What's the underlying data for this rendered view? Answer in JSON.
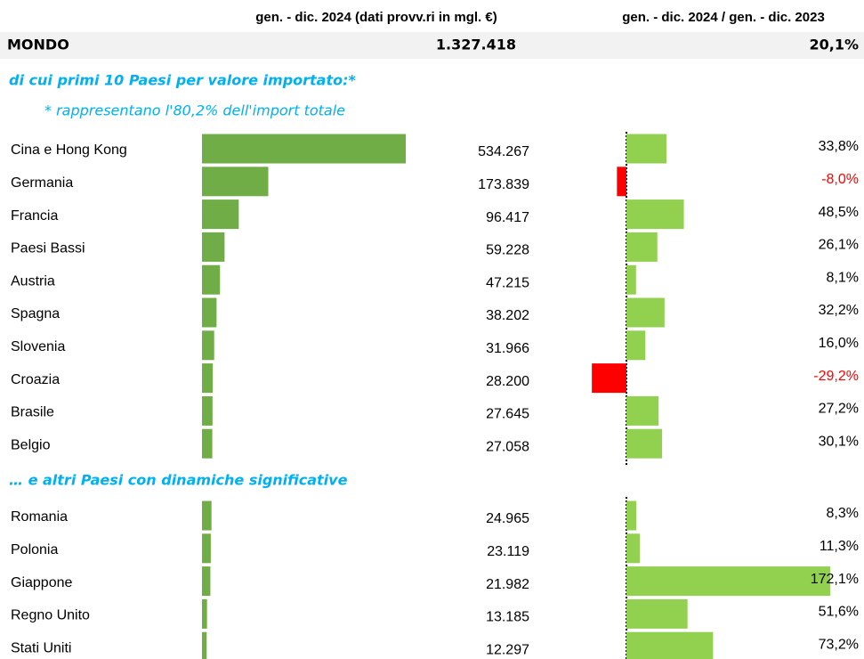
{
  "header": {
    "col1": "gen. - dic. 2024 (dati provv.ri in mgl. €)",
    "col2": "gen. - dic. 2024 / gen. - dic. 2023"
  },
  "world": {
    "name": "MONDO",
    "value": 1327418,
    "value_label": "1.327.418",
    "change": 20.1,
    "change_label": "20,1%"
  },
  "top_title": "di cui primi 10 Paesi per valore importato:*",
  "top_note": "* rappresentano l'80,2% dell'import totale",
  "top": [
    {
      "name": "Cina e Hong Kong",
      "value": 534267,
      "value_label": "534.267",
      "change": 33.8,
      "change_label": "33,8%"
    },
    {
      "name": "Germania",
      "value": 173839,
      "value_label": "173.839",
      "change": -8.0,
      "change_label": "-8,0%"
    },
    {
      "name": "Francia",
      "value": 96417,
      "value_label": "96.417",
      "change": 48.5,
      "change_label": "48,5%"
    },
    {
      "name": "Paesi Bassi",
      "value": 59228,
      "value_label": "59.228",
      "change": 26.1,
      "change_label": "26,1%"
    },
    {
      "name": "Austria",
      "value": 47215,
      "value_label": "47.215",
      "change": 8.1,
      "change_label": "8,1%"
    },
    {
      "name": "Spagna",
      "value": 38202,
      "value_label": "38.202",
      "change": 32.2,
      "change_label": "32,2%"
    },
    {
      "name": "Slovenia",
      "value": 31966,
      "value_label": "31.966",
      "change": 16.0,
      "change_label": "16,0%"
    },
    {
      "name": "Croazia",
      "value": 28200,
      "value_label": "28.200",
      "change": -29.2,
      "change_label": "-29,2%"
    },
    {
      "name": "Brasile",
      "value": 27645,
      "value_label": "27.645",
      "change": 27.2,
      "change_label": "27,2%"
    },
    {
      "name": "Belgio",
      "value": 27058,
      "value_label": "27.058",
      "change": 30.1,
      "change_label": "30,1%"
    }
  ],
  "others_title": "… e altri Paesi con dinamiche significative",
  "others": [
    {
      "name": "Romania",
      "value": 24965,
      "value_label": "24.965",
      "change": 8.3,
      "change_label": "8,3%"
    },
    {
      "name": "Polonia",
      "value": 23119,
      "value_label": "23.119",
      "change": 11.3,
      "change_label": "11,3%"
    },
    {
      "name": "Giappone",
      "value": 21982,
      "value_label": "21.982",
      "change": 172.1,
      "change_label": "172,1%"
    },
    {
      "name": "Regno Unito",
      "value": 13185,
      "value_label": "13.185",
      "change": 51.6,
      "change_label": "51,6%"
    },
    {
      "name": "Stati Uniti",
      "value": 12297,
      "value_label": "12.297",
      "change": 73.2,
      "change_label": "73,2%"
    }
  ]
}
